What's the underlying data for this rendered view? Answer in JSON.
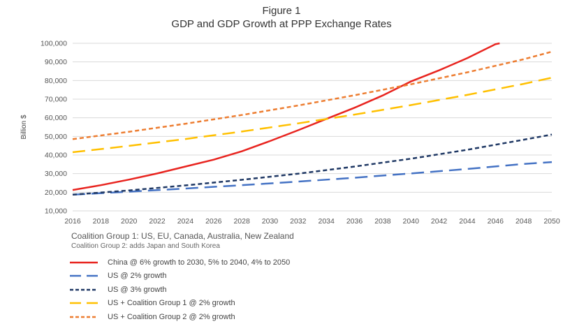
{
  "figure": {
    "number": "Figure 1",
    "title": "GDP and GDP Growth at PPP Exchange Rates"
  },
  "notes": {
    "group1": "Coalition Group 1: US, EU, Canada, Australia, New Zealand",
    "group2": "Coalition Group 2: adds Japan and South Korea"
  },
  "chart_data": {
    "type": "line",
    "title": "GDP and GDP Growth at PPP Exchange Rates",
    "xlabel": "",
    "ylabel": "Billion $",
    "xlim": [
      2016,
      2050
    ],
    "ylim": [
      10000,
      100000
    ],
    "xticks": [
      2016,
      2018,
      2020,
      2022,
      2024,
      2026,
      2028,
      2030,
      2032,
      2034,
      2036,
      2038,
      2040,
      2042,
      2044,
      2046,
      2048,
      2050
    ],
    "yticks": [
      10000,
      20000,
      30000,
      40000,
      50000,
      60000,
      70000,
      80000,
      90000,
      100000
    ],
    "ytick_labels": [
      "10,000",
      "20,000",
      "30,000",
      "40,000",
      "50,000",
      "60,000",
      "70,000",
      "80,000",
      "90,000",
      "100,000"
    ],
    "grid": true,
    "legend_position": "bottom",
    "series": [
      {
        "name": "China @ 6% growth to 2030, 5% to 2040, 4% to 2050",
        "color": "#e8241f",
        "dash": "solid",
        "points": [
          [
            2016,
            21200
          ],
          [
            2018,
            23800
          ],
          [
            2020,
            26800
          ],
          [
            2022,
            30100
          ],
          [
            2024,
            33800
          ],
          [
            2026,
            37500
          ],
          [
            2028,
            42000
          ],
          [
            2030,
            47500
          ],
          [
            2032,
            53300
          ],
          [
            2034,
            59400
          ],
          [
            2036,
            65400
          ],
          [
            2038,
            72000
          ],
          [
            2040,
            79500
          ],
          [
            2042,
            85500
          ],
          [
            2044,
            92000
          ],
          [
            2046,
            99500
          ],
          [
            2046.3,
            100000
          ]
        ]
      },
      {
        "name": "US @ 2% growth",
        "color": "#4472c4",
        "dash": "long",
        "points": [
          [
            2016,
            18700
          ],
          [
            2020,
            20300
          ],
          [
            2024,
            22000
          ],
          [
            2028,
            23800
          ],
          [
            2032,
            25700
          ],
          [
            2036,
            27800
          ],
          [
            2040,
            30100
          ],
          [
            2044,
            32500
          ],
          [
            2048,
            35200
          ],
          [
            2050,
            36200
          ]
        ]
      },
      {
        "name": "US @ 3% growth",
        "color": "#1f3864",
        "dash": "short",
        "points": [
          [
            2016,
            18700
          ],
          [
            2020,
            21000
          ],
          [
            2024,
            23700
          ],
          [
            2028,
            26700
          ],
          [
            2032,
            30000
          ],
          [
            2036,
            33800
          ],
          [
            2040,
            38000
          ],
          [
            2044,
            42800
          ],
          [
            2048,
            48200
          ],
          [
            2050,
            51000
          ]
        ]
      },
      {
        "name": "US + Coalition Group 1 @ 2% growth",
        "color": "#ffc000",
        "dash": "long",
        "points": [
          [
            2016,
            41500
          ],
          [
            2020,
            44900
          ],
          [
            2024,
            48600
          ],
          [
            2028,
            52600
          ],
          [
            2032,
            57000
          ],
          [
            2036,
            61700
          ],
          [
            2040,
            66800
          ],
          [
            2044,
            72300
          ],
          [
            2048,
            78200
          ],
          [
            2050,
            81500
          ]
        ]
      },
      {
        "name": "US + Coalition Group 2 @ 2% growth",
        "color": "#ed7d31",
        "dash": "short",
        "points": [
          [
            2016,
            48500
          ],
          [
            2020,
            52500
          ],
          [
            2024,
            56800
          ],
          [
            2028,
            61500
          ],
          [
            2032,
            66600
          ],
          [
            2036,
            72100
          ],
          [
            2040,
            78000
          ],
          [
            2044,
            84400
          ],
          [
            2048,
            91400
          ],
          [
            2050,
            95500
          ]
        ]
      }
    ]
  }
}
